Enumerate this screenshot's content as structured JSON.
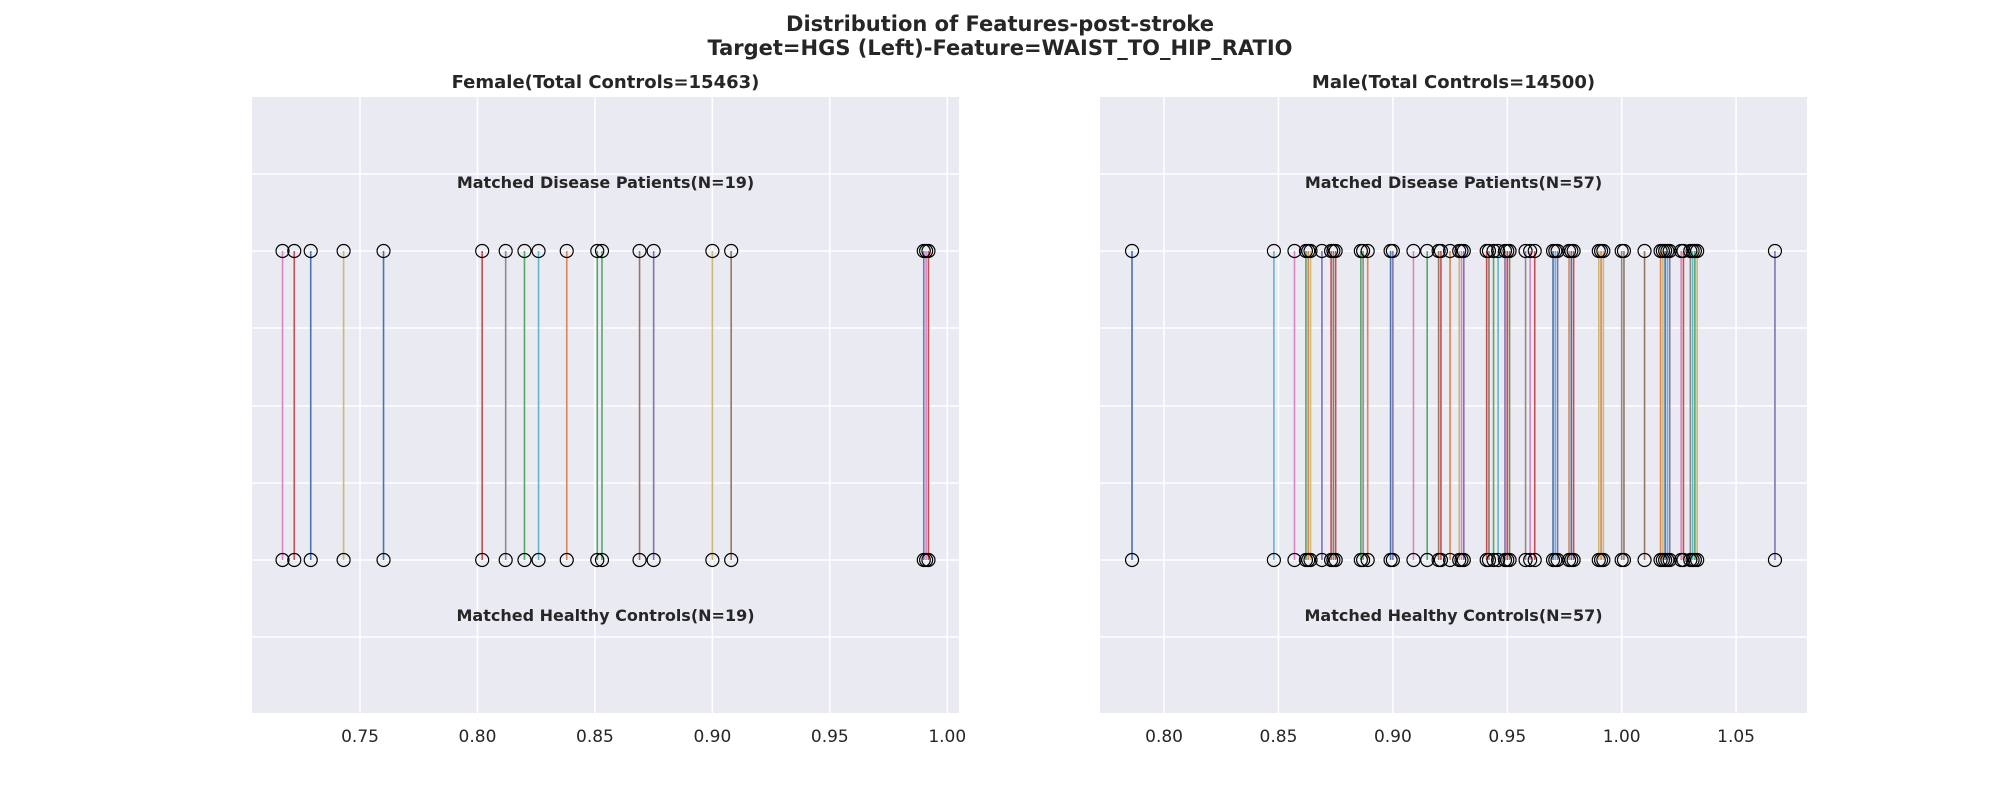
{
  "figure": {
    "title_line1": "Distribution of Features-post-stroke",
    "title_line2": "Target=HGS (Left)-Feature=WAIST_TO_HIP_RATIO"
  },
  "chart_data": [
    {
      "type": "scatter",
      "title": "Female(Total Controls=15463)",
      "top_label": "Matched Disease Patients(N=19)",
      "bottom_label": "Matched Healthy Controls(N=19)",
      "xlim": [
        0.704,
        1.005
      ],
      "xticks": [
        0.75,
        0.8,
        0.85,
        0.9,
        0.95,
        1.0
      ],
      "xtick_labels": [
        "0.75",
        "0.80",
        "0.85",
        "0.90",
        "0.95",
        "1.00"
      ],
      "grid": true,
      "points": [
        0.717,
        0.722,
        0.729,
        0.743,
        0.76,
        0.802,
        0.812,
        0.82,
        0.826,
        0.838,
        0.851,
        0.853,
        0.869,
        0.875,
        0.9,
        0.908,
        0.99,
        0.991,
        0.992
      ],
      "colors": [
        "#dd84c0",
        "#c44e52",
        "#4c72b0",
        "#ccb974",
        "#4c72b0",
        "#c44e52",
        "#8c8c8c",
        "#55a868",
        "#64b5cd",
        "#dd8452",
        "#55a868",
        "#55a868",
        "#937860",
        "#8172b3",
        "#ccb974",
        "#937860",
        "#8172b3",
        "#dd84c0",
        "#c44e52"
      ]
    },
    {
      "type": "scatter",
      "title": "Male(Total Controls=14500)",
      "top_label": "Matched Disease Patients(N=57)",
      "bottom_label": "Matched Healthy Controls(N=57)",
      "xlim": [
        0.772,
        1.081
      ],
      "xticks": [
        0.8,
        0.85,
        0.9,
        0.95,
        1.0,
        1.05
      ],
      "xtick_labels": [
        "0.80",
        "0.85",
        "0.90",
        "0.95",
        "1.00",
        "1.05"
      ],
      "grid": true,
      "points": [
        0.786,
        0.848,
        0.857,
        0.862,
        0.863,
        0.864,
        0.869,
        0.873,
        0.874,
        0.875,
        0.886,
        0.887,
        0.889,
        0.899,
        0.9,
        0.909,
        0.915,
        0.92,
        0.921,
        0.925,
        0.929,
        0.93,
        0.931,
        0.941,
        0.942,
        0.944,
        0.946,
        0.949,
        0.95,
        0.951,
        0.958,
        0.96,
        0.962,
        0.97,
        0.971,
        0.972,
        0.977,
        0.978,
        0.979,
        0.99,
        0.991,
        0.992,
        1.0,
        1.001,
        1.01,
        1.017,
        1.018,
        1.019,
        1.02,
        1.021,
        1.026,
        1.027,
        1.03,
        1.031,
        1.032,
        1.033,
        1.067
      ],
      "colors": [
        "#4c72b0",
        "#64b5cd",
        "#dd84c0",
        "#55a868",
        "#dd8452",
        "#ccb974",
        "#8172b3",
        "#c44e52",
        "#937860",
        "#c44e52",
        "#55a868",
        "#8c8c8c",
        "#dd8452",
        "#4c72b0",
        "#8172b3",
        "#dd84c0",
        "#55a868",
        "#937860",
        "#c44e52",
        "#dd8452",
        "#ccb974",
        "#dd84c0",
        "#8172b3",
        "#c44e52",
        "#937860",
        "#55a868",
        "#64b5cd",
        "#8172b3",
        "#c44e52",
        "#937860",
        "#8c8c8c",
        "#dd84c0",
        "#c44e52",
        "#4c72b0",
        "#64b5cd",
        "#8172b3",
        "#dd8452",
        "#4c72b0",
        "#c44e52",
        "#ccb974",
        "#dd8452",
        "#ccb974",
        "#8c8c8c",
        "#937860",
        "#937860",
        "#dd8452",
        "#ccb974",
        "#4c72b0",
        "#64b5cd",
        "#8172b3",
        "#dd84c0",
        "#c44e52",
        "#8c8c8c",
        "#64b5cd",
        "#55a868",
        "#ccb974",
        "#8172b3"
      ]
    }
  ]
}
